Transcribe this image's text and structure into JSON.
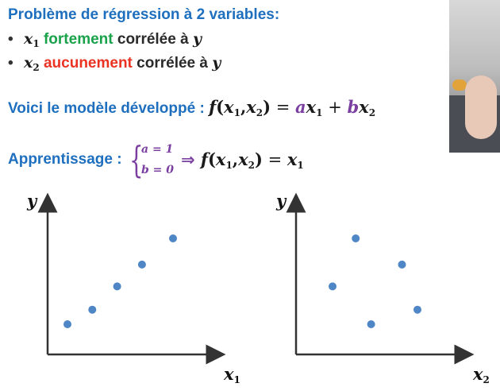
{
  "title": "Problème de régression à 2 variables:",
  "bullets": [
    {
      "bullet": "•",
      "var": "x",
      "sub": "1",
      "highlight": "fortement",
      "rest": "corrélée à",
      "target": "y"
    },
    {
      "bullet": "•",
      "var": "x",
      "sub": "2",
      "highlight": "aucunement",
      "rest": "corrélée à",
      "target": "y"
    }
  ],
  "model": {
    "label": "Voici le modèle développé :",
    "f": "f",
    "open": "(",
    "x": "x",
    "s1": "1",
    "comma": ",",
    "x2": "x",
    "s2": "2",
    "close": ")",
    "eq": " = ",
    "a": "a",
    "x_a": "x",
    "s_a": "1",
    "plus": " + ",
    "b": "b",
    "x_b": "x",
    "s_b": "2"
  },
  "learning": {
    "label": "Apprentissage :",
    "line1": "a = 1",
    "line2": "b = 0",
    "arrow": "⇒ ",
    "f": "f",
    "open": "(",
    "x": "x",
    "s1": "1",
    "comma": ",",
    "x2": "x",
    "s2": "2",
    "close": ")",
    "eq": " = ",
    "res": "x",
    "res_sub": "1"
  },
  "plots": [
    {
      "ylabel": "y",
      "xlabel": "x",
      "xlabel_sub": "1"
    },
    {
      "ylabel": "y",
      "xlabel": "x",
      "xlabel_sub": "2"
    }
  ],
  "chart_data": [
    {
      "type": "scatter",
      "xlabel": "x1",
      "ylabel": "y",
      "xlim": [
        0,
        10
      ],
      "ylim": [
        0,
        10
      ],
      "grid": false,
      "color": "#4f86c6",
      "points": [
        [
          1.5,
          2.0
        ],
        [
          3.5,
          3.0
        ],
        [
          5.5,
          4.6
        ],
        [
          7.5,
          6.1
        ],
        [
          10.0,
          7.9
        ]
      ]
    },
    {
      "type": "scatter",
      "xlabel": "x2",
      "ylabel": "y",
      "xlim": [
        0,
        10
      ],
      "ylim": [
        0,
        10
      ],
      "grid": false,
      "color": "#4f86c6",
      "points": [
        [
          2.0,
          4.6
        ],
        [
          3.5,
          7.9
        ],
        [
          4.5,
          2.0
        ],
        [
          6.5,
          6.1
        ],
        [
          7.5,
          3.0
        ]
      ]
    }
  ],
  "colors": {
    "blue": "#1f6fbf",
    "green": "#1aa24a",
    "red": "#ea3323",
    "purple": "#7a3fa0",
    "point": "#4f86c6"
  }
}
